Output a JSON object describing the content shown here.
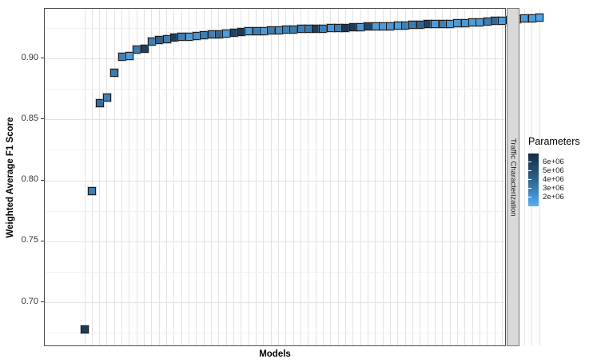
{
  "ui": {
    "y_axis": {
      "title": "Weighted Average F1 Score",
      "tick_labels": [
        "0.90",
        "0.85",
        "0.80",
        "0.75",
        "0.70"
      ]
    },
    "x_axis": {
      "title": "Models"
    },
    "facet_strip": {
      "label": "Traffic Characterization"
    },
    "legend": {
      "title": "Parameters",
      "labels": [
        "6e+06",
        "5e+06",
        "4e+06",
        "3e+06",
        "2e+06"
      ]
    },
    "colors": {
      "gradient_dark": "#132B43",
      "gradient_light": "#56B1F7",
      "strip_bg": "#D9D9D9",
      "grid_major": "#E3E3E3",
      "grid_minor": "#F1F1F1",
      "panel_border": "#4D4D4D",
      "point_border": "#1A1A1A"
    }
  },
  "chart_data": {
    "type": "scatter",
    "point_shape": "filled-square",
    "title": "",
    "xlabel": "Models",
    "ylabel": "Weighted Average F1 Score",
    "x_tick_labels_hidden": true,
    "n_models": 62,
    "ylim": [
      0.663,
      0.941
    ],
    "y_major_ticks": [
      0.9,
      0.85,
      0.8,
      0.75,
      0.7
    ],
    "y_minor_ticks": [
      0.925,
      0.875,
      0.825,
      0.775,
      0.725,
      0.675
    ],
    "grid": "on",
    "legend_position": "right",
    "color_scale": {
      "label": "Parameters",
      "tick_values": [
        6000000,
        5000000,
        4000000,
        3000000,
        2000000
      ],
      "domain": [
        1400000,
        6900000
      ],
      "low_color": "#56B1F7",
      "high_color": "#132B43"
    },
    "facet_label": "Traffic Characterization",
    "x": [
      1,
      2,
      3,
      4,
      5,
      6,
      7,
      8,
      9,
      10,
      11,
      12,
      13,
      14,
      15,
      16,
      17,
      18,
      19,
      20,
      21,
      22,
      23,
      24,
      25,
      26,
      27,
      28,
      29,
      30,
      31,
      32,
      33,
      34,
      35,
      36,
      37,
      38,
      39,
      40,
      41,
      42,
      43,
      44,
      45,
      46,
      47,
      48,
      49,
      50,
      51,
      52,
      53,
      54,
      55,
      56,
      57,
      58,
      59,
      60,
      61,
      62
    ],
    "f1_values": [
      0.678,
      0.791,
      0.863,
      0.868,
      0.888,
      0.901,
      0.902,
      0.907,
      0.908,
      0.914,
      0.915,
      0.916,
      0.917,
      0.9175,
      0.918,
      0.9185,
      0.919,
      0.9195,
      0.92,
      0.9205,
      0.921,
      0.9215,
      0.922,
      0.9225,
      0.9225,
      0.923,
      0.923,
      0.9235,
      0.9235,
      0.924,
      0.924,
      0.9245,
      0.9245,
      0.925,
      0.925,
      0.925,
      0.9255,
      0.9255,
      0.926,
      0.926,
      0.9265,
      0.9265,
      0.927,
      0.927,
      0.9275,
      0.9275,
      0.928,
      0.928,
      0.9285,
      0.9285,
      0.929,
      0.929,
      0.9295,
      0.9295,
      0.93,
      0.9305,
      0.931,
      0.9315,
      0.932,
      0.9325,
      0.933,
      0.9335
    ],
    "parameters": [
      6200000,
      3500000,
      4200000,
      3400000,
      3600000,
      3400000,
      2200000,
      3500000,
      6000000,
      3400000,
      4600000,
      3500000,
      6100000,
      3400000,
      2200000,
      2600000,
      3500000,
      3400000,
      4400000,
      2200000,
      5900000,
      6300000,
      2200000,
      3400000,
      2300000,
      3500000,
      2800000,
      3400000,
      3500000,
      3400000,
      3600000,
      6100000,
      3400000,
      2300000,
      3500000,
      6400000,
      6200000,
      2400000,
      5800000,
      2200000,
      2300000,
      2400000,
      2200000,
      3400000,
      3600000,
      4500000,
      5900000,
      2300000,
      3500000,
      2200000,
      2300000,
      2400000,
      2200000,
      2300000,
      3500000,
      4400000,
      2200000,
      2100000,
      2300000,
      2200000,
      2100000,
      2000000
    ]
  }
}
